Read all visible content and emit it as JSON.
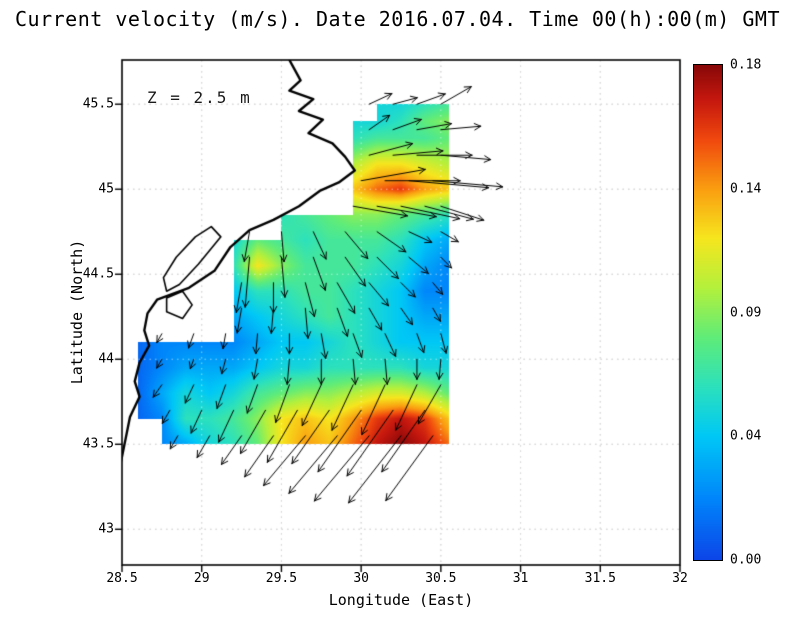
{
  "chart_data": {
    "type": "heatmap",
    "title": "Current velocity (m/s). Date 2016.07.04. Time 00(h):00(m) GMT",
    "annotation": "Z = 2.5 m",
    "xlabel": "Longitude (East)",
    "ylabel": "Latitude (North)",
    "xlim": [
      28.5,
      32.0
    ],
    "ylim": [
      42.79,
      45.76
    ],
    "x_ticks": [
      28.5,
      29,
      29.5,
      30,
      30.5,
      31,
      31.5,
      32
    ],
    "x_tick_labels": [
      "28.5",
      "29",
      "29.5",
      "30",
      "30.5",
      "31",
      "31.5",
      "32"
    ],
    "y_ticks": [
      43,
      43.5,
      44,
      44.5,
      45,
      45.5
    ],
    "y_tick_labels": [
      "43",
      "43.5",
      "44",
      "44.5",
      "45",
      "45.5"
    ],
    "grid_on": true,
    "colorbar": {
      "values": [
        0.18,
        0.14,
        0.09,
        0.04,
        0.0
      ],
      "labels": [
        "0.18",
        "0.14",
        "0.09",
        "0.04",
        "0.00"
      ]
    },
    "field": {
      "note": "current speed (m/s); rows ordered south-to-north; null = land / no data",
      "lons": [
        28.6,
        28.75,
        28.9,
        29.05,
        29.2,
        29.35,
        29.5,
        29.65,
        29.8,
        29.95,
        30.1,
        30.25,
        30.4,
        30.55
      ],
      "lats": [
        43.5,
        43.65,
        43.8,
        43.95,
        44.1,
        44.25,
        44.4,
        44.55,
        44.7,
        44.85,
        45.0,
        45.15,
        45.3,
        45.4,
        45.5
      ],
      "speed_ms": [
        [
          null,
          0.02,
          0.03,
          0.05,
          0.06,
          0.08,
          0.12,
          0.14,
          0.13,
          0.15,
          0.17,
          0.18,
          0.17,
          0.15
        ],
        [
          0.01,
          0.02,
          0.06,
          0.06,
          0.07,
          0.09,
          0.12,
          0.13,
          0.12,
          0.14,
          0.16,
          0.17,
          0.16,
          0.13
        ],
        [
          0.01,
          0.03,
          0.05,
          0.04,
          0.05,
          0.07,
          0.08,
          0.09,
          0.09,
          0.1,
          0.11,
          0.11,
          0.1,
          0.08
        ],
        [
          0.01,
          0.02,
          0.03,
          0.03,
          0.03,
          0.04,
          0.05,
          0.05,
          0.06,
          0.06,
          0.06,
          0.06,
          0.05,
          0.05
        ],
        [
          0.01,
          0.02,
          0.02,
          0.02,
          0.02,
          0.03,
          0.04,
          0.04,
          0.05,
          0.06,
          0.05,
          0.04,
          0.04,
          0.04
        ],
        [
          null,
          null,
          null,
          null,
          0.03,
          0.04,
          0.05,
          0.06,
          0.07,
          0.06,
          0.05,
          0.04,
          0.03,
          0.03
        ],
        [
          null,
          null,
          null,
          null,
          0.04,
          0.06,
          0.06,
          0.07,
          0.07,
          0.06,
          0.05,
          0.04,
          0.02,
          0.02
        ],
        [
          null,
          null,
          null,
          null,
          0.06,
          0.12,
          0.09,
          0.07,
          0.07,
          0.07,
          0.06,
          0.05,
          0.03,
          0.02
        ],
        [
          null,
          null,
          null,
          null,
          0.05,
          0.08,
          0.07,
          0.06,
          0.07,
          0.07,
          0.07,
          0.06,
          0.04,
          0.03
        ],
        [
          null,
          null,
          null,
          null,
          null,
          null,
          0.06,
          0.07,
          0.08,
          0.09,
          0.09,
          0.08,
          0.07,
          0.06
        ],
        [
          null,
          null,
          null,
          null,
          null,
          null,
          null,
          null,
          null,
          0.13,
          0.15,
          0.16,
          0.14,
          0.13
        ],
        [
          null,
          null,
          null,
          null,
          null,
          null,
          null,
          null,
          null,
          0.1,
          0.12,
          0.12,
          0.11,
          0.1
        ],
        [
          null,
          null,
          null,
          null,
          null,
          null,
          null,
          null,
          null,
          0.06,
          0.07,
          0.07,
          0.07,
          0.08
        ],
        [
          null,
          null,
          null,
          null,
          null,
          null,
          null,
          null,
          null,
          0.05,
          0.05,
          0.06,
          0.08,
          0.09
        ],
        [
          null,
          null,
          null,
          null,
          null,
          null,
          null,
          null,
          null,
          null,
          0.05,
          0.05,
          0.06,
          0.07
        ]
      ]
    },
    "arrows": {
      "format": "[lon, lat, direction_deg_ccw_from_east, speed_ms]",
      "items": [
        [
          30.05,
          45.5,
          25,
          0.05
        ],
        [
          30.2,
          45.5,
          15,
          0.05
        ],
        [
          30.35,
          45.5,
          20,
          0.06
        ],
        [
          30.5,
          45.5,
          30,
          0.07
        ],
        [
          30.05,
          45.35,
          35,
          0.05
        ],
        [
          30.2,
          45.35,
          20,
          0.06
        ],
        [
          30.35,
          45.35,
          10,
          0.07
        ],
        [
          30.5,
          45.35,
          5,
          0.08
        ],
        [
          30.05,
          45.2,
          15,
          0.09
        ],
        [
          30.2,
          45.2,
          5,
          0.1
        ],
        [
          30.35,
          45.2,
          0,
          0.11
        ],
        [
          30.5,
          45.2,
          -5,
          0.1
        ],
        [
          30.0,
          45.05,
          10,
          0.13
        ],
        [
          30.15,
          45.05,
          0,
          0.15
        ],
        [
          30.3,
          45.05,
          -5,
          0.16
        ],
        [
          30.45,
          45.05,
          -5,
          0.14
        ],
        [
          29.95,
          44.9,
          -10,
          0.11
        ],
        [
          30.1,
          44.9,
          -10,
          0.12
        ],
        [
          30.25,
          44.9,
          -12,
          0.12
        ],
        [
          30.4,
          44.9,
          -15,
          0.1
        ],
        [
          30.5,
          44.9,
          -18,
          0.09
        ],
        [
          29.3,
          44.75,
          -100,
          0.06
        ],
        [
          29.5,
          44.75,
          -85,
          0.06
        ],
        [
          29.7,
          44.75,
          -65,
          0.06
        ],
        [
          29.9,
          44.75,
          -50,
          0.07
        ],
        [
          30.1,
          44.75,
          -35,
          0.07
        ],
        [
          30.3,
          44.75,
          -25,
          0.05
        ],
        [
          30.5,
          44.75,
          -30,
          0.04
        ],
        [
          29.3,
          44.6,
          -95,
          0.1
        ],
        [
          29.5,
          44.6,
          -85,
          0.08
        ],
        [
          29.7,
          44.6,
          -70,
          0.07
        ],
        [
          29.9,
          44.6,
          -55,
          0.07
        ],
        [
          30.1,
          44.6,
          -45,
          0.06
        ],
        [
          30.3,
          44.6,
          -40,
          0.05
        ],
        [
          30.5,
          44.6,
          -45,
          0.03
        ],
        [
          29.25,
          44.45,
          -100,
          0.06
        ],
        [
          29.45,
          44.45,
          -90,
          0.06
        ],
        [
          29.65,
          44.45,
          -75,
          0.07
        ],
        [
          29.85,
          44.45,
          -60,
          0.07
        ],
        [
          30.05,
          44.45,
          -50,
          0.06
        ],
        [
          30.25,
          44.45,
          -45,
          0.04
        ],
        [
          30.45,
          44.45,
          -50,
          0.03
        ],
        [
          29.25,
          44.3,
          -100,
          0.05
        ],
        [
          29.45,
          44.3,
          -95,
          0.05
        ],
        [
          29.65,
          44.3,
          -85,
          0.06
        ],
        [
          29.85,
          44.3,
          -70,
          0.06
        ],
        [
          30.05,
          44.3,
          -60,
          0.05
        ],
        [
          30.25,
          44.3,
          -55,
          0.04
        ],
        [
          30.45,
          44.3,
          -60,
          0.03
        ],
        [
          28.75,
          44.15,
          -120,
          0.02
        ],
        [
          28.95,
          44.15,
          -110,
          0.03
        ],
        [
          29.15,
          44.15,
          -100,
          0.03
        ],
        [
          29.35,
          44.15,
          -95,
          0.04
        ],
        [
          29.55,
          44.15,
          -90,
          0.04
        ],
        [
          29.75,
          44.15,
          -80,
          0.05
        ],
        [
          29.95,
          44.15,
          -70,
          0.05
        ],
        [
          30.15,
          44.15,
          -65,
          0.05
        ],
        [
          30.35,
          44.15,
          -70,
          0.04
        ],
        [
          30.5,
          44.15,
          -75,
          0.04
        ],
        [
          28.75,
          44.0,
          -120,
          0.02
        ],
        [
          28.95,
          44.0,
          -110,
          0.02
        ],
        [
          29.15,
          44.0,
          -105,
          0.03
        ],
        [
          29.35,
          44.0,
          -100,
          0.04
        ],
        [
          29.55,
          44.0,
          -95,
          0.05
        ],
        [
          29.75,
          44.0,
          -90,
          0.05
        ],
        [
          29.95,
          44.0,
          -85,
          0.05
        ],
        [
          30.15,
          44.0,
          -85,
          0.05
        ],
        [
          30.35,
          44.0,
          -90,
          0.04
        ],
        [
          30.5,
          44.0,
          -95,
          0.04
        ],
        [
          28.75,
          43.85,
          -125,
          0.03
        ],
        [
          28.95,
          43.85,
          -115,
          0.04
        ],
        [
          29.15,
          43.85,
          -110,
          0.05
        ],
        [
          29.35,
          43.85,
          -110,
          0.06
        ],
        [
          29.55,
          43.85,
          -110,
          0.08
        ],
        [
          29.75,
          43.85,
          -115,
          0.09
        ],
        [
          29.95,
          43.85,
          -115,
          0.1
        ],
        [
          30.15,
          43.85,
          -115,
          0.11
        ],
        [
          30.35,
          43.85,
          -115,
          0.1
        ],
        [
          30.5,
          43.85,
          -120,
          0.09
        ],
        [
          28.8,
          43.7,
          -120,
          0.03
        ],
        [
          29.0,
          43.7,
          -115,
          0.05
        ],
        [
          29.2,
          43.7,
          -115,
          0.07
        ],
        [
          29.4,
          43.7,
          -120,
          0.1
        ],
        [
          29.6,
          43.7,
          -120,
          0.12
        ],
        [
          29.8,
          43.7,
          -125,
          0.13
        ],
        [
          30.0,
          43.7,
          -125,
          0.15
        ],
        [
          30.2,
          43.7,
          -125,
          0.16
        ],
        [
          30.4,
          43.7,
          -125,
          0.15
        ],
        [
          28.85,
          43.55,
          -120,
          0.03
        ],
        [
          29.05,
          43.55,
          -120,
          0.05
        ],
        [
          29.25,
          43.55,
          -125,
          0.07
        ],
        [
          29.45,
          43.55,
          -125,
          0.1
        ],
        [
          29.65,
          43.55,
          -130,
          0.13
        ],
        [
          29.85,
          43.55,
          -130,
          0.15
        ],
        [
          30.05,
          43.55,
          -130,
          0.17
        ],
        [
          30.25,
          43.55,
          -128,
          0.17
        ],
        [
          30.45,
          43.55,
          -126,
          0.16
        ]
      ]
    },
    "coastline": [
      [
        [
          29.55,
          45.76
        ],
        [
          29.62,
          45.64
        ],
        [
          29.55,
          45.58
        ],
        [
          29.7,
          45.53
        ],
        [
          29.61,
          45.46
        ],
        [
          29.76,
          45.41
        ],
        [
          29.67,
          45.33
        ],
        [
          29.82,
          45.27
        ],
        [
          29.9,
          45.19
        ],
        [
          29.96,
          45.11
        ],
        [
          29.86,
          45.04
        ],
        [
          29.74,
          44.99
        ],
        [
          29.61,
          44.9
        ],
        [
          29.45,
          44.82
        ],
        [
          29.3,
          44.76
        ],
        [
          29.18,
          44.66
        ],
        [
          29.08,
          44.52
        ],
        [
          28.92,
          44.42
        ],
        [
          28.72,
          44.35
        ],
        [
          28.66,
          44.27
        ],
        [
          28.64,
          44.17
        ],
        [
          28.67,
          44.08
        ],
        [
          28.61,
          43.98
        ],
        [
          28.58,
          43.87
        ],
        [
          28.61,
          43.78
        ],
        [
          28.55,
          43.66
        ],
        [
          28.52,
          43.52
        ],
        [
          28.49,
          43.38
        ]
      ]
    ],
    "lakes": [
      [
        [
          29.12,
          44.72
        ],
        [
          28.98,
          44.56
        ],
        [
          28.86,
          44.44
        ],
        [
          28.78,
          44.4
        ],
        [
          28.76,
          44.48
        ],
        [
          28.84,
          44.6
        ],
        [
          28.96,
          44.72
        ],
        [
          29.06,
          44.78
        ],
        [
          29.12,
          44.72
        ]
      ],
      [
        [
          28.88,
          44.4
        ],
        [
          28.94,
          44.32
        ],
        [
          28.88,
          44.24
        ],
        [
          28.78,
          44.28
        ],
        [
          28.78,
          44.36
        ],
        [
          28.88,
          44.4
        ]
      ]
    ]
  }
}
